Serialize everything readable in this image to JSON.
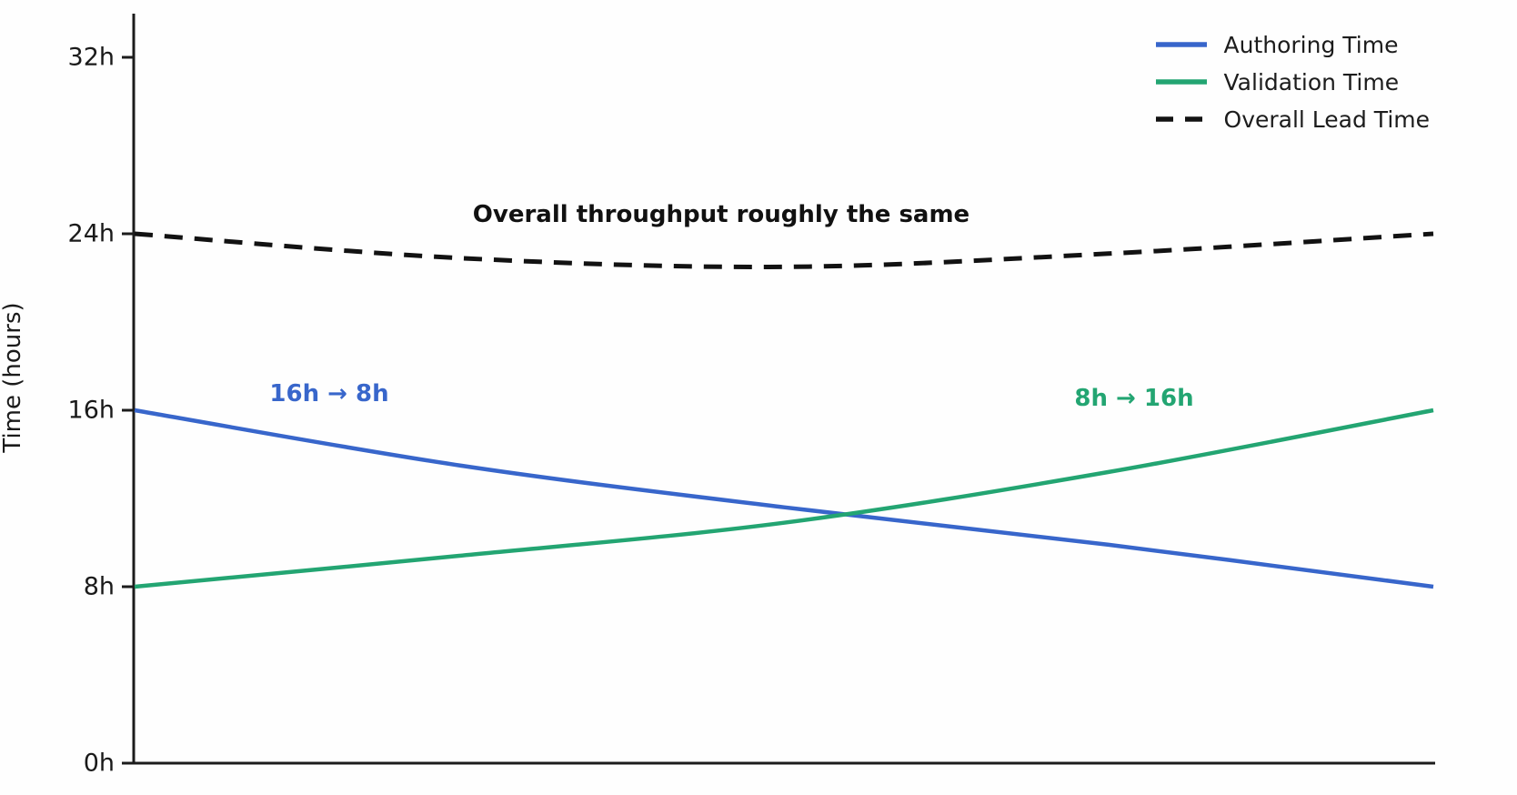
{
  "figure": {
    "y_axis_label": "Time (hours)",
    "background": "#fefefe",
    "axis_color": "#1c1c1c",
    "text_color": "#1a1a1a"
  },
  "legend": {
    "position": "upper right",
    "items": [
      {
        "label": "Authoring Time",
        "color": "#3866cb",
        "style": "solid"
      },
      {
        "label": "Validation Time",
        "color": "#23a572",
        "style": "solid"
      },
      {
        "label": "Overall Lead Time",
        "color": "#121212",
        "style": "dashed"
      }
    ]
  },
  "annotations": {
    "overall": {
      "text": "Overall throughput roughly the same",
      "color": "#111111"
    },
    "authoring": {
      "text": "16h → 8h",
      "color": "#3866cb"
    },
    "validation": {
      "text": "8h → 16h",
      "color": "#23a572"
    }
  },
  "chart_data": {
    "type": "line",
    "title": "",
    "xlabel": "",
    "ylabel": "Time (hours)",
    "x_axis_labels": "none (unlabeled timeline, left to right)",
    "x": [
      0,
      0.25,
      0.5,
      0.75,
      1
    ],
    "series": [
      {
        "name": "Authoring Time",
        "color": "#3866cb",
        "style": "solid",
        "width": 4.5,
        "values": [
          16,
          13.5,
          11.6,
          9.9,
          8
        ]
      },
      {
        "name": "Validation Time",
        "color": "#23a572",
        "style": "solid",
        "width": 4.5,
        "values": [
          8,
          9.4,
          10.9,
          13.2,
          16
        ]
      },
      {
        "name": "Overall Lead Time",
        "color": "#121212",
        "style": "dashed",
        "width": 5,
        "values": [
          24,
          22.9,
          22.5,
          23.1,
          24
        ]
      }
    ],
    "ylim": [
      0,
      34
    ],
    "y_ticks_hours": [
      0,
      8,
      16,
      24,
      32
    ],
    "y_tick_labels": [
      "0h",
      "8h",
      "16h",
      "24h",
      "32h"
    ],
    "grid": false,
    "legend_position": "upper right",
    "notes": "Authoring time falls 16h to 8h, validation time rises 8h to 16h, overall lead time dips slightly (~22.5h) mid-way but returns to 24h."
  }
}
